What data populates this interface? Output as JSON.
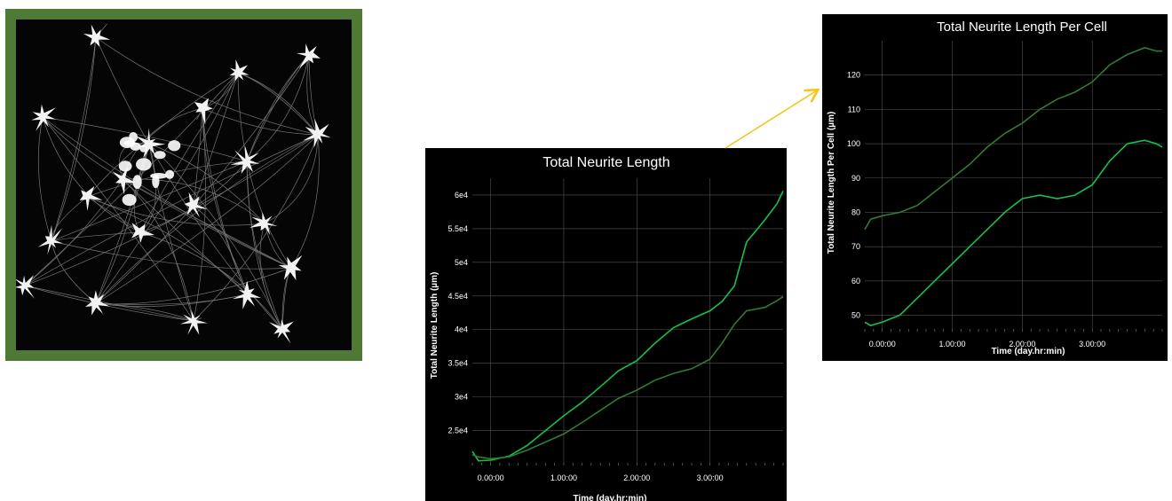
{
  "micrograph": {
    "alt": ""
  },
  "colors": {
    "frame": "#4f7a36",
    "line_bright": "#12c24a",
    "line_dim": "#2e7d32",
    "arrow": "#f5c518",
    "grid": "#555555"
  },
  "chart_data": [
    {
      "type": "line",
      "title": "Total Neurite Length",
      "xlabel": "Time (day.hr:min)",
      "ylabel": "Total Neurite Length (µm)",
      "x_tick_labels": [
        "0.00:00",
        "1.00:00",
        "2.00:00",
        "3.00:00"
      ],
      "x_ticks_hours": [
        0,
        24,
        48,
        72
      ],
      "xlim_hours": [
        -6,
        96
      ],
      "y_tick_labels": [
        "2.5e4",
        "3e4",
        "3.5e4",
        "4e4",
        "4.5e4",
        "5e4",
        "5.5e4",
        "6e4"
      ],
      "y_ticks": [
        25000,
        30000,
        35000,
        40000,
        45000,
        50000,
        55000,
        60000
      ],
      "ylim": [
        20200,
        62500
      ],
      "grid": true,
      "series": [
        {
          "color": "#12c24a",
          "x": [
            -6,
            -4,
            0,
            6,
            12,
            18,
            24,
            30,
            36,
            42,
            48,
            54,
            60,
            66,
            72,
            76,
            80,
            84,
            90,
            94,
            96
          ],
          "y": [
            21900,
            20500,
            20600,
            21200,
            22800,
            25000,
            27200,
            29200,
            31500,
            33900,
            35400,
            38000,
            40300,
            41600,
            42800,
            44200,
            46500,
            53000,
            56300,
            58700,
            60600
          ]
        },
        {
          "color": "#2e7d32",
          "x": [
            -6,
            -4,
            0,
            6,
            12,
            18,
            24,
            30,
            36,
            42,
            48,
            54,
            60,
            66,
            72,
            76,
            80,
            84,
            90,
            94,
            96
          ],
          "y": [
            21400,
            21100,
            20800,
            21100,
            22100,
            23300,
            24500,
            26200,
            28000,
            29800,
            31000,
            32500,
            33500,
            34200,
            35600,
            38000,
            40800,
            42800,
            43300,
            44300,
            44900
          ]
        }
      ]
    },
    {
      "type": "line",
      "title": "Total Neurite Length Per Cell",
      "xlabel": "Time (day.hr:min)",
      "ylabel": "Total Neurite Length Per Cell (µm)",
      "x_tick_labels": [
        "0.00:00",
        "1.00:00",
        "2.00:00",
        "3.00:00"
      ],
      "x_ticks_hours": [
        0,
        24,
        48,
        72
      ],
      "xlim_hours": [
        -6,
        96
      ],
      "y_tick_labels": [
        "50",
        "60",
        "70",
        "80",
        "90",
        "100",
        "110",
        "120"
      ],
      "y_ticks": [
        50,
        60,
        70,
        80,
        90,
        100,
        110,
        120
      ],
      "ylim": [
        46,
        130
      ],
      "grid": true,
      "series": [
        {
          "color": "#2e7d32",
          "x": [
            -6,
            -4,
            0,
            6,
            12,
            18,
            24,
            30,
            36,
            42,
            48,
            54,
            60,
            66,
            72,
            78,
            84,
            90,
            94,
            96
          ],
          "y": [
            75,
            78,
            79,
            80,
            82,
            86,
            90,
            94,
            99,
            103,
            106,
            110,
            113,
            115,
            118,
            123,
            126,
            128,
            127,
            127
          ]
        },
        {
          "color": "#12c24a",
          "x": [
            -6,
            -4,
            0,
            6,
            12,
            18,
            24,
            30,
            36,
            42,
            48,
            54,
            60,
            66,
            72,
            78,
            84,
            90,
            94,
            96
          ],
          "y": [
            48,
            47,
            48,
            50,
            55,
            60,
            65,
            70,
            75,
            80,
            84,
            85,
            84,
            85,
            88,
            95,
            100,
            101,
            100,
            99
          ]
        }
      ]
    }
  ]
}
